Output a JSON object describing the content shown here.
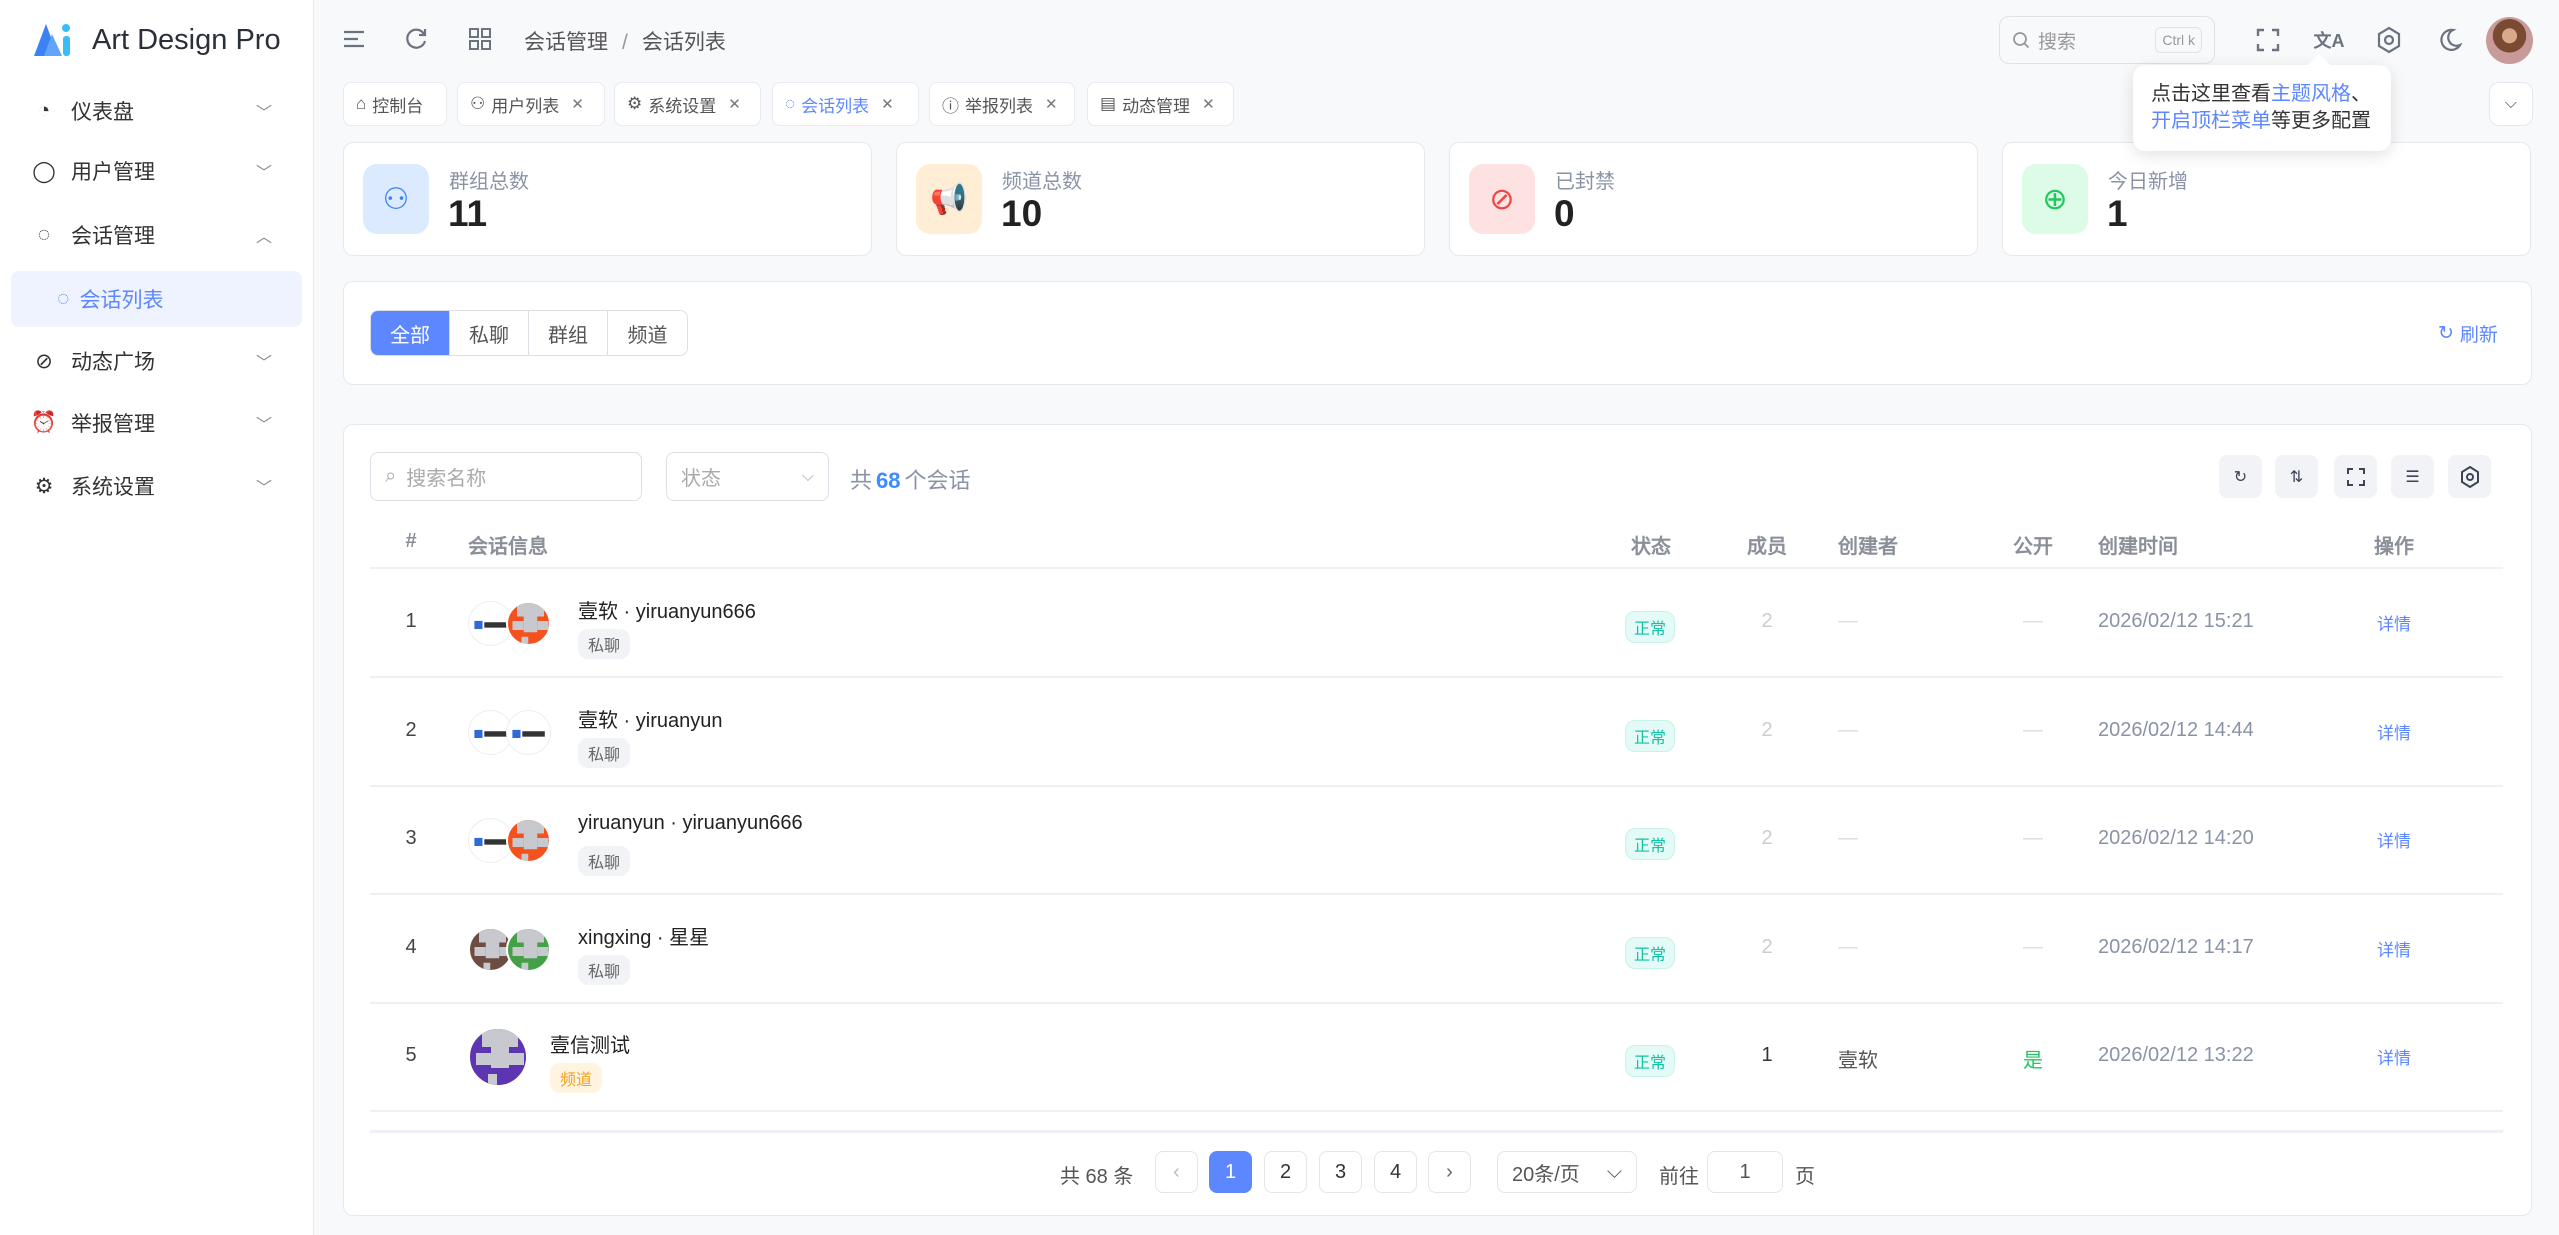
{
  "app": {
    "title": "Art Design Pro"
  },
  "sidebar": {
    "items": [
      {
        "label": "仪表盘",
        "icon": "pie-chart-icon",
        "expanded": false
      },
      {
        "label": "用户管理",
        "icon": "user-icon",
        "expanded": false
      },
      {
        "label": "会话管理",
        "icon": "chat-icon",
        "expanded": true
      },
      {
        "label": "会话列表",
        "icon": "chat-bubble-icon",
        "active": true
      },
      {
        "label": "动态广场",
        "icon": "compass-icon",
        "expanded": false
      },
      {
        "label": "举报管理",
        "icon": "alarm-icon",
        "expanded": false
      },
      {
        "label": "系统设置",
        "icon": "gear-icon",
        "expanded": false
      }
    ]
  },
  "header": {
    "breadcrumb": [
      "会话管理",
      "会话列表"
    ],
    "search_placeholder": "搜索",
    "search_shortcut": "Ctrl k"
  },
  "tooltip": {
    "p1": "点击这里查看",
    "h1": "主题风格",
    "p2": "、",
    "h2": "开启顶栏菜单",
    "p3": "等更多配置"
  },
  "tabs": [
    {
      "label": "控制台",
      "icon": "home-icon",
      "closable": false
    },
    {
      "label": "用户列表",
      "icon": "users-icon",
      "closable": true
    },
    {
      "label": "系统设置",
      "icon": "gear-icon",
      "closable": true
    },
    {
      "label": "会话列表",
      "icon": "chat-bubble-icon",
      "closable": true,
      "active": true
    },
    {
      "label": "举报列表",
      "icon": "alert-icon",
      "closable": true
    },
    {
      "label": "动态管理",
      "icon": "document-icon",
      "closable": true
    }
  ],
  "stats": [
    {
      "label": "群组总数",
      "value": "11",
      "color": "#3b82f6",
      "bg": "#dbeafe",
      "icon": "users-icon"
    },
    {
      "label": "频道总数",
      "value": "10",
      "color": "#f97316",
      "bg": "#ffedd5",
      "icon": "megaphone-icon"
    },
    {
      "label": "已封禁",
      "value": "0",
      "color": "#ef4444",
      "bg": "#fee2e2",
      "icon": "ban-icon"
    },
    {
      "label": "今日新增",
      "value": "1",
      "color": "#22c55e",
      "bg": "#dcfce7",
      "icon": "plus-circle-icon"
    }
  ],
  "filter": {
    "segments": [
      "全部",
      "私聊",
      "群组",
      "频道"
    ],
    "active": 0,
    "refresh": "刷新"
  },
  "toolbar": {
    "search_placeholder": "搜索名称",
    "status_placeholder": "状态",
    "count_prefix": "共",
    "count": "68",
    "count_suffix": "个会话"
  },
  "table": {
    "columns": [
      "#",
      "会话信息",
      "状态",
      "成员",
      "创建者",
      "公开",
      "创建时间",
      "操作"
    ],
    "rows": [
      {
        "idx": "1",
        "name": "壹软 · yiruanyun666",
        "type": "私聊",
        "status": "正常",
        "members": "2",
        "creator": "—",
        "public": "—",
        "time": "2026/02/12 15:21",
        "action": "详情",
        "avatars": [
          "logo",
          "#f4511e"
        ]
      },
      {
        "idx": "2",
        "name": "壹软 · yiruanyun",
        "type": "私聊",
        "status": "正常",
        "members": "2",
        "creator": "—",
        "public": "—",
        "time": "2026/02/12 14:44",
        "action": "详情",
        "avatars": [
          "logo",
          "logo"
        ]
      },
      {
        "idx": "3",
        "name": "yiruanyun · yiruanyun666",
        "type": "私聊",
        "status": "正常",
        "members": "2",
        "creator": "—",
        "public": "—",
        "time": "2026/02/12 14:20",
        "action": "详情",
        "avatars": [
          "logo",
          "#f4511e"
        ]
      },
      {
        "idx": "4",
        "name": "xingxing · 星星",
        "type": "私聊",
        "status": "正常",
        "members": "2",
        "creator": "—",
        "public": "—",
        "time": "2026/02/12 14:17",
        "action": "详情",
        "avatars": [
          "#6d4c41",
          "#43a047"
        ]
      },
      {
        "idx": "5",
        "name": "壹信测试",
        "type": "频道",
        "status": "正常",
        "members": "1",
        "creator": "壹软",
        "public": "是",
        "time": "2026/02/12 13:22",
        "action": "详情",
        "avatars": [
          "#5e35b1"
        ]
      }
    ]
  },
  "pagination": {
    "total": "共 68 条",
    "pages": [
      "1",
      "2",
      "3",
      "4"
    ],
    "current": "1",
    "page_size": "20条/页",
    "goto_label": "前往",
    "goto_value": "1",
    "goto_suffix": "页"
  }
}
